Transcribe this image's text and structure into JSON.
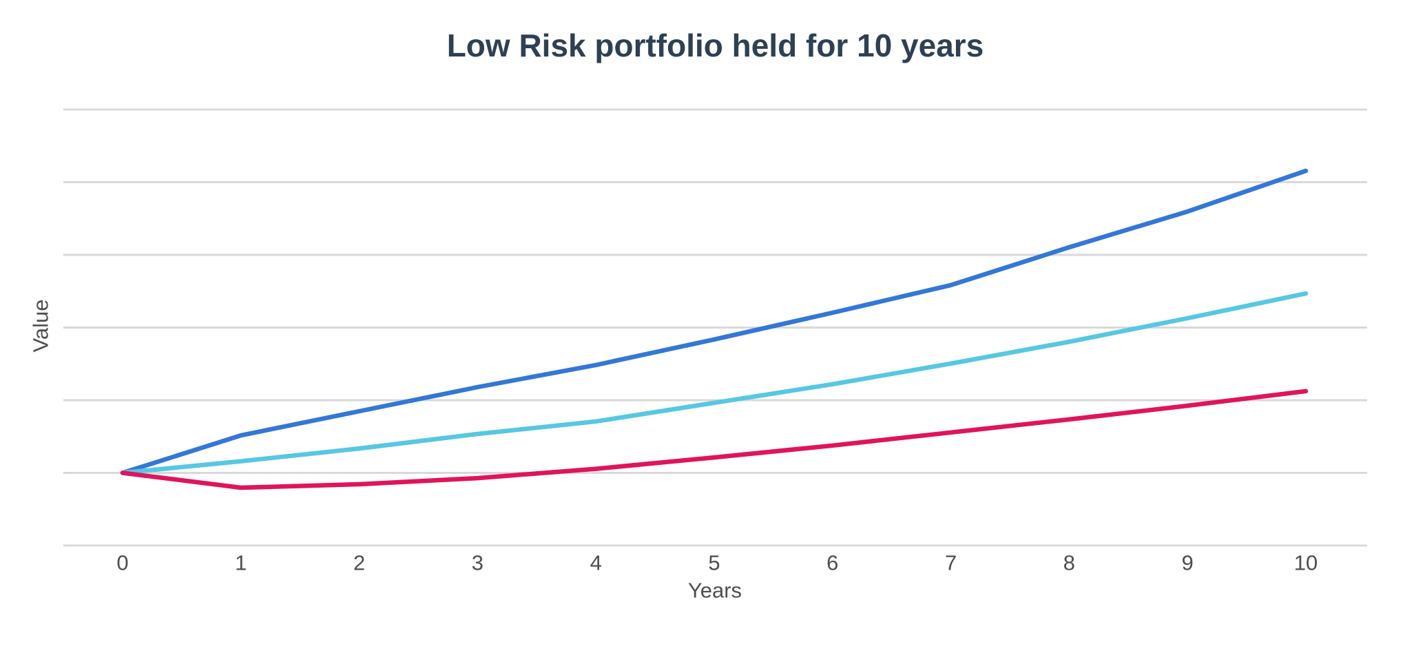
{
  "chart": {
    "title": "Low Risk portfolio held for 10 years",
    "x_axis_label": "Years",
    "y_axis_label": "Value"
  },
  "colors": {
    "background": "#ffffff",
    "title_text": "#2e4053",
    "axis_text": "#4e4e4e",
    "gridline": "#d9d9d9",
    "line_blue": "#3377d8",
    "line_cyan": "#57c7e3",
    "line_pink": "#e0145c"
  },
  "chart_data": {
    "type": "line",
    "title": "Low Risk portfolio held for 10 years",
    "xlabel": "Years",
    "ylabel": "Value",
    "x": [
      0,
      1,
      2,
      3,
      4,
      5,
      6,
      7,
      8,
      9,
      10
    ],
    "x_tick_labels": [
      "0",
      "1",
      "2",
      "3",
      "4",
      "5",
      "6",
      "7",
      "8",
      "9",
      "10"
    ],
    "series": [
      {
        "name": "blue-line",
        "color": "#3377d8",
        "values": [
          1.0,
          1.129,
          1.212,
          1.295,
          1.371,
          1.459,
          1.551,
          1.646,
          1.776,
          1.899,
          2.039
        ]
      },
      {
        "name": "cyan-line",
        "color": "#57c7e3",
        "values": [
          1.0,
          1.04,
          1.084,
          1.134,
          1.177,
          1.241,
          1.305,
          1.376,
          1.451,
          1.532,
          1.617
        ]
      },
      {
        "name": "pink-line",
        "color": "#e0145c",
        "values": [
          1.0,
          0.949,
          0.961,
          0.982,
          1.014,
          1.053,
          1.094,
          1.139,
          1.184,
          1.231,
          1.281
        ]
      }
    ],
    "ylim": [
      0.75,
      2.25
    ],
    "y_gridline_step": 0.25,
    "y_tick_labels_visible": false,
    "grid": "horizontal-only",
    "legend": "none"
  }
}
